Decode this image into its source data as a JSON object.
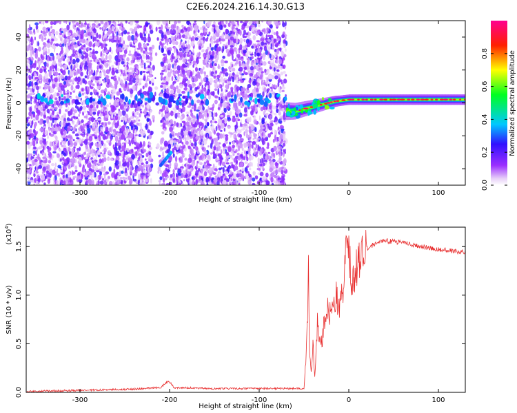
{
  "figure": {
    "title": "C2E6.2024.216.14.30.G13"
  },
  "chart_data": [
    {
      "type": "heatmap",
      "xlabel": "Height of straight line (km)",
      "ylabel": "Frequency (Hz)",
      "xlim": [
        -360,
        130
      ],
      "ylim": [
        -50,
        50
      ],
      "xticks": [
        -300,
        -200,
        -100,
        0,
        100
      ],
      "yticks": [
        -40,
        -20,
        0,
        20,
        40
      ],
      "grid": false,
      "colorbar": {
        "label": "Normalized spectral amplitude",
        "range": [
          0.0,
          1.0
        ],
        "ticks": [
          "0.0",
          "0.2",
          "0.4",
          "0.6",
          "0.8"
        ],
        "colormap": "rainbow (white → violet → blue → cyan → green → yellow → red → magenta)"
      },
      "features": {
        "noise_region_x": [
          -360,
          -70
        ],
        "signal_onset_x": -70,
        "signal_center_frequency_Hz": 2,
        "signal_track_points": [
          [
            -70,
            -5
          ],
          [
            -60,
            -5
          ],
          [
            -45,
            -3
          ],
          [
            -30,
            -1
          ],
          [
            -15,
            1
          ],
          [
            0,
            2
          ],
          [
            50,
            2
          ],
          [
            130,
            2
          ]
        ],
        "gap_x": [
          -220,
          -210
        ]
      }
    },
    {
      "type": "line",
      "xlabel": "Height of straight line (km)",
      "ylabel": "SNR (10 * v/v)",
      "y_scale_label": "(x10^4)",
      "xlim": [
        -360,
        130
      ],
      "ylim": [
        0,
        1.7
      ],
      "xticks": [
        -300,
        -200,
        -100,
        0,
        100
      ],
      "yticks": [
        "0.0",
        "0.5",
        "1.0",
        "1.5"
      ],
      "grid": false,
      "series": [
        {
          "color": "#e83030",
          "points": [
            [
              -360,
              0.01
            ],
            [
              -300,
              0.02
            ],
            [
              -250,
              0.03
            ],
            [
              -210,
              0.05
            ],
            [
              -201,
              0.12
            ],
            [
              -195,
              0.05
            ],
            [
              -150,
              0.04
            ],
            [
              -100,
              0.04
            ],
            [
              -50,
              0.04
            ],
            [
              -48,
              0.3
            ],
            [
              -46,
              0.8
            ],
            [
              -45,
              1.47
            ],
            [
              -44,
              0.4
            ],
            [
              -42,
              0.2
            ],
            [
              -40,
              0.5
            ],
            [
              -38,
              0.15
            ],
            [
              -35,
              0.7
            ],
            [
              -30,
              0.5
            ],
            [
              -25,
              0.9
            ],
            [
              -20,
              0.8
            ],
            [
              -15,
              1.0
            ],
            [
              -10,
              0.85
            ],
            [
              -5,
              1.2
            ],
            [
              0,
              1.67
            ],
            [
              3,
              0.9
            ],
            [
              5,
              1.15
            ],
            [
              10,
              1.35
            ],
            [
              20,
              1.48
            ],
            [
              30,
              1.53
            ],
            [
              40,
              1.56
            ],
            [
              60,
              1.54
            ],
            [
              80,
              1.5
            ],
            [
              100,
              1.47
            ],
            [
              130,
              1.44
            ]
          ]
        }
      ]
    }
  ]
}
